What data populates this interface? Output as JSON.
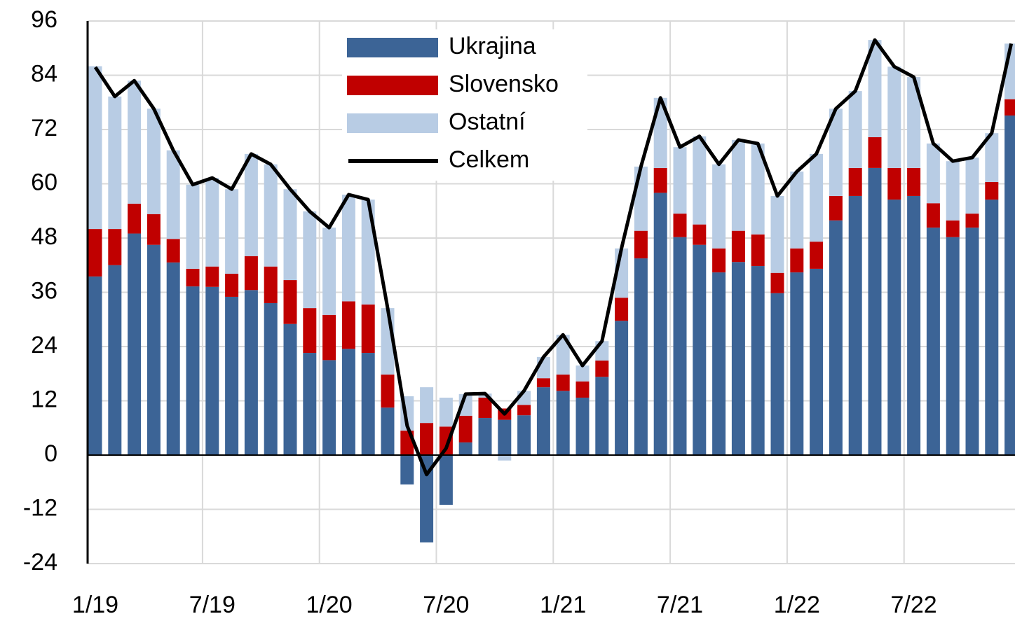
{
  "chart_data": {
    "type": "bar",
    "stacked": true,
    "categories": [
      "1/19",
      null,
      null,
      null,
      null,
      null,
      "7/19",
      null,
      null,
      null,
      null,
      null,
      "1/20",
      null,
      null,
      null,
      null,
      null,
      "7/20",
      null,
      null,
      null,
      null,
      null,
      "1/21",
      null,
      null,
      null,
      null,
      null,
      "7/21",
      null,
      null,
      null,
      null,
      null,
      "1/22",
      null,
      null,
      null,
      null,
      null,
      "7/22",
      null,
      null,
      null,
      null,
      null
    ],
    "series": [
      {
        "name": "Ukrajina",
        "color": "#3c6496",
        "values": [
          39.5,
          42,
          49,
          46.5,
          42.6,
          37.3,
          37.2,
          35,
          36.5,
          33.6,
          29,
          22.6,
          21,
          23.5,
          22.6,
          10.5,
          -6.5,
          -19.3,
          -11,
          2.8,
          8.2,
          7.8,
          8.8,
          15,
          14.2,
          12.7,
          17.3,
          29.7,
          43.5,
          58,
          48.2,
          46.5,
          40.4,
          42.7,
          41.8,
          35.8,
          40.4,
          41.2,
          51.9,
          57.3,
          63.5,
          56.5,
          57.3,
          50.3,
          48.2,
          50.3,
          56.5,
          75.1
        ]
      },
      {
        "name": "Slovensko",
        "color": "#c00000",
        "values": [
          10.5,
          8,
          6.6,
          6.8,
          5.2,
          3.9,
          4.5,
          5.1,
          7.5,
          8.1,
          9.7,
          9.9,
          10,
          10.5,
          10.7,
          7.3,
          5.4,
          7.1,
          6.3,
          5.9,
          4.5,
          2.5,
          2.3,
          2,
          3.6,
          3.6,
          3.6,
          5.1,
          6.1,
          5.5,
          5.2,
          4.5,
          5.3,
          6.9,
          7,
          4.5,
          5.3,
          6,
          5.4,
          6.2,
          6.8,
          7,
          6.2,
          5.4,
          3.7,
          3.1,
          3.9,
          3.6
        ]
      },
      {
        "name": "Ostatní",
        "color": "#b8cce4",
        "values": [
          36,
          29.3,
          27.2,
          23.3,
          19.6,
          18.6,
          19.6,
          18.7,
          22.6,
          22.6,
          20.1,
          21.4,
          19.3,
          23.6,
          23.2,
          14.7,
          7.6,
          7.9,
          6.4,
          4.8,
          0.9,
          -1.2,
          3.1,
          4.7,
          8.8,
          3.5,
          4.3,
          10.9,
          14.2,
          15.5,
          14.7,
          19.5,
          18.6,
          20.1,
          20.1,
          17,
          17,
          19.4,
          19.3,
          17,
          21.5,
          22.4,
          20.1,
          13.2,
          13.1,
          12.4,
          10.8,
          12.3
        ]
      },
      {
        "name": "Celkem",
        "color": "#000000",
        "type": "line",
        "values": [
          85.8,
          79.3,
          82.8,
          76.6,
          67.4,
          59.8,
          61.3,
          58.8,
          66.6,
          64.3,
          58.8,
          53.9,
          50.3,
          57.6,
          56.5,
          32.5,
          6.5,
          -4.3,
          1.5,
          13.5,
          13.6,
          9.1,
          14.2,
          21.7,
          26.6,
          19.8,
          25.2,
          45.7,
          63.8,
          79,
          68.1,
          70.5,
          64.3,
          69.7,
          68.9,
          57.3,
          62.7,
          66.6,
          76.6,
          80.5,
          91.8,
          85.9,
          83.6,
          68.9,
          65,
          65.8,
          71.2,
          91
        ]
      }
    ],
    "ylim": [
      -24,
      96
    ],
    "yticks": [
      -24,
      -12,
      0,
      12,
      24,
      36,
      48,
      60,
      72,
      84,
      96
    ],
    "grid": true,
    "legend": "top"
  }
}
